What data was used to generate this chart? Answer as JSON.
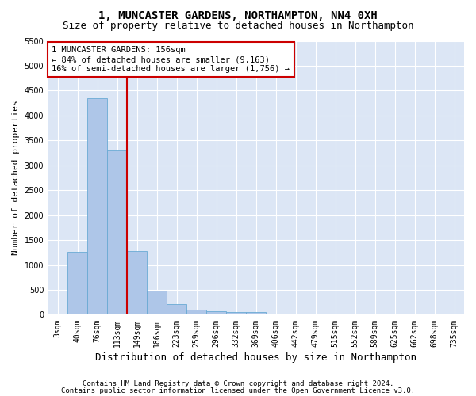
{
  "title": "1, MUNCASTER GARDENS, NORTHAMPTON, NN4 0XH",
  "subtitle": "Size of property relative to detached houses in Northampton",
  "xlabel": "Distribution of detached houses by size in Northampton",
  "ylabel": "Number of detached properties",
  "categories": [
    "3sqm",
    "40sqm",
    "76sqm",
    "113sqm",
    "149sqm",
    "186sqm",
    "223sqm",
    "259sqm",
    "296sqm",
    "332sqm",
    "369sqm",
    "406sqm",
    "442sqm",
    "479sqm",
    "515sqm",
    "552sqm",
    "589sqm",
    "625sqm",
    "662sqm",
    "698sqm",
    "735sqm"
  ],
  "values": [
    0,
    1260,
    4340,
    3300,
    1280,
    490,
    215,
    95,
    75,
    55,
    50,
    0,
    0,
    0,
    0,
    0,
    0,
    0,
    0,
    0,
    0
  ],
  "bar_color": "#aec6e8",
  "bar_edge_color": "#6aaad4",
  "red_line_x": 3.5,
  "annotation_line1": "1 MUNCASTER GARDENS: 156sqm",
  "annotation_line2": "← 84% of detached houses are smaller (9,163)",
  "annotation_line3": "16% of semi-detached houses are larger (1,756) →",
  "annotation_box_color": "#ffffff",
  "annotation_box_edge_color": "#cc0000",
  "ylim": [
    0,
    5500
  ],
  "yticks": [
    0,
    500,
    1000,
    1500,
    2000,
    2500,
    3000,
    3500,
    4000,
    4500,
    5000,
    5500
  ],
  "footer_line1": "Contains HM Land Registry data © Crown copyright and database right 2024.",
  "footer_line2": "Contains public sector information licensed under the Open Government Licence v3.0.",
  "fig_bg_color": "#ffffff",
  "plot_bg_color": "#dce6f5",
  "grid_color": "#ffffff",
  "title_fontsize": 10,
  "subtitle_fontsize": 9,
  "xlabel_fontsize": 9,
  "ylabel_fontsize": 8,
  "tick_fontsize": 7,
  "annotation_fontsize": 7.5,
  "footer_fontsize": 6.5
}
